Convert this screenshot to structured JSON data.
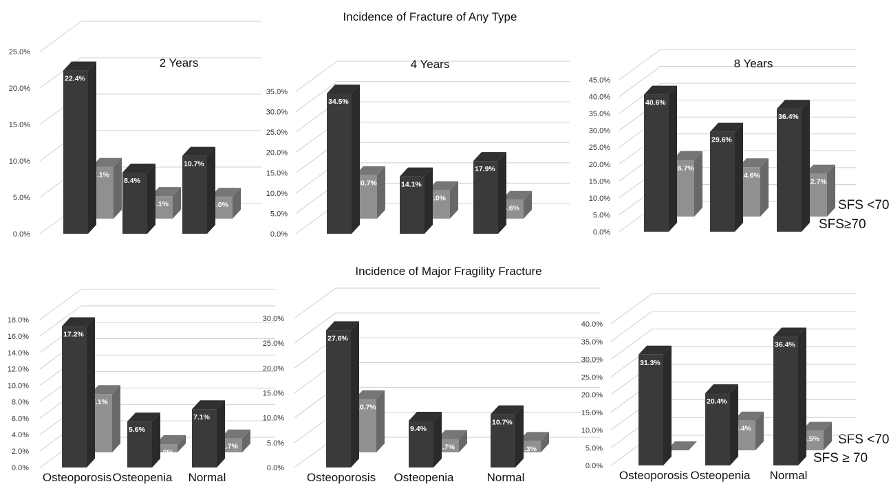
{
  "rows": [
    {
      "title": "Incidence of  Fracture of Any Type"
    },
    {
      "title": "Incidence of Major Fragility Fracture"
    }
  ],
  "legend": {
    "top": {
      "s1": "SFS <70",
      "s2": "SFS≥70"
    },
    "bottom": {
      "s1": "SFS <70",
      "s2": "SFS ≥ 70"
    }
  },
  "colors": {
    "series_dark": "#3a3a3a",
    "series_light": "#909090",
    "grid": "#cfcfcf"
  },
  "chart_data": [
    {
      "type": "bar",
      "title": "2 Years",
      "categories": [
        "Osteoporosis",
        "Osteopenia",
        "Normal"
      ],
      "series": [
        {
          "name": "SFS <70",
          "values": [
            22.4,
            8.4,
            10.7
          ],
          "labels": [
            "22.4%",
            "8.4%",
            "10.7%"
          ]
        },
        {
          "name": "SFS≥70",
          "values": [
            7.1,
            3.1,
            3.0
          ],
          "labels": [
            "7.1%",
            "3.1%",
            "3.0%"
          ]
        }
      ],
      "ylim": [
        0,
        25
      ],
      "yticks": [
        "0.0%",
        "5.0%",
        "10.0%",
        "15.0%",
        "20.0%",
        "25.0%"
      ],
      "show_categories": false
    },
    {
      "type": "bar",
      "title": "4 Years",
      "categories": [
        "Osteoporosis",
        "Osteopenia",
        "Normal"
      ],
      "series": [
        {
          "name": "SFS <70",
          "values": [
            34.5,
            14.1,
            17.9
          ],
          "labels": [
            "34.5%",
            "14.1%",
            "17.9%"
          ]
        },
        {
          "name": "SFS≥70",
          "values": [
            10.7,
            7.0,
            4.6
          ],
          "labels": [
            "10.7%",
            "7.0%",
            "4.6%"
          ]
        }
      ],
      "ylim": [
        0,
        35
      ],
      "yticks": [
        "0.0%",
        "5.0%",
        "10.0%",
        "15.0%",
        "20.0%",
        "25.0%",
        "30.0%",
        "35.0%"
      ],
      "show_categories": false
    },
    {
      "type": "bar",
      "title": "8 Years",
      "categories": [
        "Osteoporosis",
        "Osteopenia",
        "Normal"
      ],
      "series": [
        {
          "name": "SFS <70",
          "values": [
            40.6,
            29.6,
            36.4
          ],
          "labels": [
            "40.6%",
            "29.6%",
            "36.4%"
          ]
        },
        {
          "name": "SFS≥70",
          "values": [
            16.7,
            14.6,
            12.7
          ],
          "labels": [
            "16.7%",
            "14.6%",
            "12.7%"
          ]
        }
      ],
      "ylim": [
        0,
        45
      ],
      "yticks": [
        "0.0%",
        "5.0%",
        "10.0%",
        "15.0%",
        "20.0%",
        "25.0%",
        "30.0%",
        "35.0%",
        "40.0%",
        "45.0%"
      ],
      "show_categories": false
    },
    {
      "type": "bar",
      "title": "",
      "categories": [
        "Osteoporosis",
        "Osteopenia",
        "Normal"
      ],
      "series": [
        {
          "name": "SFS <70",
          "values": [
            17.2,
            5.6,
            7.1
          ],
          "labels": [
            "17.2%",
            "5.6%",
            "7.1%"
          ]
        },
        {
          "name": "SFS ≥ 70",
          "values": [
            7.1,
            1.0,
            1.7
          ],
          "labels": [
            "7.1%",
            "1.0%",
            "1.7%"
          ]
        }
      ],
      "ylim": [
        0,
        18
      ],
      "yticks": [
        "0.0%",
        "2.0%",
        "4.0%",
        "6.0%",
        "8.0%",
        "10.0%",
        "12.0%",
        "14.0%",
        "16.0%",
        "18.0%"
      ],
      "show_categories": true
    },
    {
      "type": "bar",
      "title": "",
      "categories": [
        "Osteoporosis",
        "Osteopenia",
        "Normal"
      ],
      "series": [
        {
          "name": "SFS <70",
          "values": [
            27.6,
            9.4,
            10.7
          ],
          "labels": [
            "27.6%",
            "9.4%",
            "10.7%"
          ]
        },
        {
          "name": "SFS ≥ 70",
          "values": [
            10.7,
            2.7,
            2.3
          ],
          "labels": [
            "10.7%",
            "2.7%",
            "2.3%"
          ]
        }
      ],
      "ylim": [
        0,
        30
      ],
      "yticks": [
        "0.0%",
        "5.0%",
        "10.0%",
        "15.0%",
        "20.0%",
        "25.0%",
        "30.0%"
      ],
      "show_categories": true
    },
    {
      "type": "bar",
      "title": "",
      "categories": [
        "Osteoporosis",
        "Osteopenia",
        "Normal"
      ],
      "series": [
        {
          "name": "SFS <70",
          "values": [
            31.3,
            20.4,
            36.4
          ],
          "labels": [
            "31.3%",
            "20.4%",
            "36.4%"
          ]
        },
        {
          "name": "SFS ≥ 70",
          "values": [
            0.0,
            8.4,
            5.5
          ],
          "labels": [
            "0.0%",
            "8.4%",
            "5.5%"
          ]
        }
      ],
      "ylim": [
        0,
        40
      ],
      "yticks": [
        "0.0%",
        "5.0%",
        "10.0%",
        "15.0%",
        "20.0%",
        "25.0%",
        "30.0%",
        "35.0%",
        "40.0%"
      ],
      "show_categories": true
    }
  ]
}
